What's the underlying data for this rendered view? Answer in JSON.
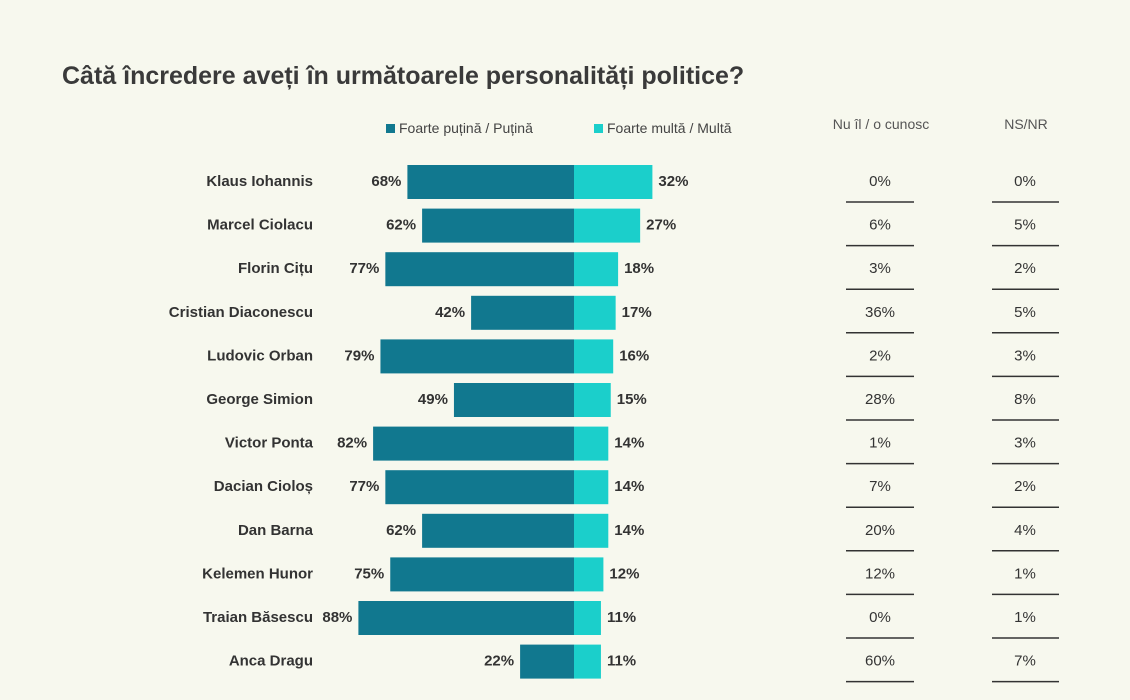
{
  "title": "Câtă încredere aveți în următoarele personalități politice?",
  "legend": [
    {
      "label": "Foarte puțină / Puțină",
      "color": "#11788f"
    },
    {
      "label": "Foarte multă / Multă",
      "color": "#1bcfcb"
    }
  ],
  "columns": {
    "unknown": "Nu îl / o cunosc",
    "nsnr": "NS/NR"
  },
  "chart_data": {
    "type": "bar",
    "orientation": "diverging-horizontal",
    "categories": [
      "Klaus Iohannis",
      "Marcel Ciolacu",
      "Florin Cițu",
      "Cristian Diaconescu",
      "Ludovic Orban",
      "George Simion",
      "Victor Ponta",
      "Dacian Cioloș",
      "Dan Barna",
      "Kelemen Hunor",
      "Traian Băsescu",
      "Anca Dragu"
    ],
    "series": [
      {
        "name": "Foarte puțină / Puțină",
        "values": [
          68,
          62,
          77,
          42,
          79,
          49,
          82,
          77,
          62,
          75,
          88,
          22
        ]
      },
      {
        "name": "Foarte multă / Multă",
        "values": [
          32,
          27,
          18,
          17,
          16,
          15,
          14,
          14,
          14,
          12,
          11,
          11
        ]
      }
    ],
    "table_columns": [
      {
        "name": "Nu îl / o cunosc",
        "values": [
          0,
          6,
          3,
          36,
          2,
          28,
          1,
          7,
          20,
          12,
          0,
          60
        ]
      },
      {
        "name": "NS/NR",
        "values": [
          0,
          5,
          2,
          5,
          3,
          8,
          3,
          2,
          4,
          1,
          1,
          7
        ]
      }
    ],
    "unit": "%",
    "legend_position": "top"
  }
}
